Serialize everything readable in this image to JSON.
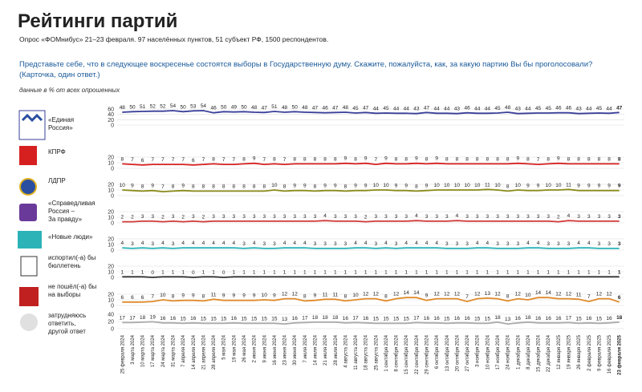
{
  "header": {
    "title": "Рейтинги партий",
    "subtitle": "Опрос «ФОМнибус» 21–23 февраля. 97 населённых пунктов, 51 субъект РФ, 1500 респондентов.",
    "question": [
      "Представьте себе, что в следующее воскресенье состоятся выборы в Государственную думу. Скажите, пожалуйста, как, за какую партию Вы бы проголосовали?",
      "(Карточка, один ответ.)"
    ],
    "note": "данные в % от всех опрошенных"
  },
  "chart_data": [
    {
      "type": "line",
      "label_lines": [
        "«Единая",
        "Россия»"
      ],
      "color": "#3a3f99",
      "ylim": [
        0,
        60
      ],
      "yticks": [
        0,
        20,
        40,
        60
      ],
      "values": [
        48,
        50,
        51,
        52,
        52,
        54,
        50,
        53,
        54,
        46,
        50,
        49,
        50,
        48,
        47,
        51,
        48,
        50,
        48,
        47,
        46,
        47,
        48,
        45,
        47,
        44,
        45,
        44,
        44,
        43,
        47,
        44,
        44,
        43,
        46,
        44,
        44,
        45,
        48,
        43,
        44,
        45,
        45,
        46,
        46,
        43,
        44,
        45,
        44,
        47
      ]
    },
    {
      "type": "line",
      "label_lines": [
        "КПРФ"
      ],
      "color": "#d62020",
      "ylim": [
        0,
        20
      ],
      "yticks": [
        0,
        10,
        20
      ],
      "values": [
        8,
        7,
        6,
        7,
        7,
        7,
        7,
        6,
        7,
        8,
        7,
        7,
        8,
        9,
        7,
        8,
        7,
        8,
        8,
        8,
        8,
        8,
        9,
        8,
        9,
        7,
        9,
        8,
        8,
        9,
        8,
        9,
        8,
        8,
        8,
        8,
        8,
        8,
        8,
        9,
        8,
        7,
        8,
        9,
        8,
        8,
        8,
        8,
        8,
        8
      ]
    },
    {
      "type": "line",
      "label_lines": [
        "ЛДПР"
      ],
      "color": "#8a8a1a",
      "ylim": [
        0,
        20
      ],
      "yticks": [
        0,
        10,
        20
      ],
      "values": [
        10,
        9,
        8,
        9,
        7,
        8,
        9,
        8,
        8,
        8,
        8,
        8,
        8,
        8,
        8,
        10,
        8,
        9,
        9,
        8,
        9,
        9,
        8,
        9,
        9,
        10,
        10,
        9,
        9,
        8,
        9,
        10,
        10,
        10,
        10,
        10,
        11,
        10,
        8,
        10,
        9,
        9,
        10,
        10,
        11,
        9,
        9,
        9,
        9,
        9
      ]
    },
    {
      "type": "line",
      "label_lines": [
        "«Справедливая",
        "Россия –",
        "За правду»"
      ],
      "color": "#d23a3a",
      "ylim": [
        0,
        20
      ],
      "yticks": [
        0,
        10,
        20
      ],
      "values": [
        2,
        2,
        3,
        3,
        2,
        3,
        2,
        3,
        2,
        3,
        3,
        3,
        3,
        3,
        3,
        3,
        3,
        3,
        3,
        3,
        4,
        3,
        3,
        3,
        2,
        3,
        3,
        3,
        3,
        4,
        3,
        3,
        3,
        4,
        3,
        3,
        3,
        3,
        3,
        3,
        3,
        3,
        3,
        2,
        4,
        3,
        3,
        3,
        3,
        3
      ]
    },
    {
      "type": "line",
      "label_lines": [
        "«Новые люди»"
      ],
      "color": "#2bb3b8",
      "ylim": [
        0,
        20
      ],
      "yticks": [
        0,
        10,
        20
      ],
      "values": [
        4,
        3,
        4,
        3,
        4,
        3,
        4,
        4,
        4,
        4,
        4,
        4,
        3,
        4,
        3,
        3,
        4,
        4,
        4,
        3,
        3,
        3,
        3,
        4,
        4,
        3,
        4,
        3,
        4,
        4,
        4,
        4,
        3,
        3,
        3,
        4,
        4,
        3,
        3,
        3,
        4,
        4,
        3,
        3,
        3,
        4,
        4,
        3,
        3,
        3
      ]
    },
    {
      "type": "line",
      "label_lines": [
        "испортил(-а) бы",
        "бюллетень"
      ],
      "color": "#333333",
      "ylim": [
        0,
        20
      ],
      "yticks": [
        0,
        10,
        20
      ],
      "values": [
        1,
        1,
        1,
        0,
        1,
        1,
        1,
        0,
        1,
        1,
        0,
        1,
        1,
        1,
        1,
        1,
        1,
        1,
        1,
        1,
        1,
        1,
        1,
        1,
        1,
        1,
        1,
        1,
        1,
        1,
        1,
        1,
        1,
        1,
        1,
        1,
        1,
        1,
        1,
        1,
        1,
        1,
        1,
        1,
        1,
        1,
        1,
        1,
        1,
        1
      ]
    },
    {
      "type": "line",
      "label_lines": [
        "не пошёл(-а) бы",
        "на выборы"
      ],
      "color": "#e08a2a",
      "ylim": [
        0,
        20
      ],
      "yticks": [
        0,
        10,
        20
      ],
      "values": [
        6,
        6,
        6,
        7,
        10,
        8,
        9,
        9,
        8,
        11,
        9,
        9,
        9,
        9,
        10,
        9,
        12,
        12,
        8,
        9,
        11,
        11,
        8,
        10,
        12,
        12,
        8,
        12,
        14,
        14,
        9,
        12,
        12,
        12,
        7,
        12,
        13,
        12,
        8,
        12,
        10,
        14,
        14,
        12,
        12,
        11,
        7,
        12,
        12,
        6
      ]
    },
    {
      "type": "line",
      "label_lines": [
        "затрудняюсь",
        "ответить,",
        "другой ответ"
      ],
      "color": "#aaaaaa",
      "ylim": [
        0,
        40
      ],
      "yticks": [
        0,
        20,
        40
      ],
      "values": [
        17,
        17,
        18,
        19,
        16,
        16,
        15,
        16,
        15,
        15,
        15,
        16,
        15,
        15,
        15,
        15,
        13,
        16,
        17,
        18,
        18,
        18,
        16,
        17,
        16,
        15,
        15,
        15,
        15,
        17,
        16,
        16,
        15,
        16,
        16,
        15,
        15,
        18,
        13,
        16,
        18,
        16,
        16,
        16,
        17,
        15,
        16,
        15,
        16,
        18
      ],
      "categories": [
        "25 февраля 2024",
        "3 марта 2024",
        "10 марта 2024",
        "17 марта 2024",
        "24 марта 2024",
        "31 марта 2024",
        "7 апреля 2024",
        "14 апреля 2024",
        "21 апреля 2024",
        "28 апреля 2024",
        "5 мая 2024",
        "19 мая 2024",
        "26 мая 2024",
        "2 июня 2024",
        "9 июня 2024",
        "16 июня 2024",
        "23 июня 2024",
        "30 июня 2024",
        "7 июля 2024",
        "14 июля 2024",
        "21 июля 2024",
        "28 июля 2024",
        "4 августа 2024",
        "11 августа 2024",
        "18 августа 2024",
        "25 августа 2024",
        "1 сентября 2024",
        "8 сентября 2024",
        "15 сентября 2024",
        "22 сентября 2024",
        "29 сентября 2024",
        "6 октября 2024",
        "13 октября 2024",
        "20 октября 2024",
        "27 октября 2024",
        "3 ноября 2024",
        "10 ноября 2024",
        "17 ноября 2024",
        "24 ноября 2024",
        "1 декабря 2024",
        "8 декабря 2024",
        "15 декабря 2024",
        "22 декабря 2024",
        "12 января 2025",
        "19 января 2025",
        "26 января 2025",
        "2 февраля 2025",
        "9 февраля 2025",
        "16 февраля 2025",
        "23 февраля 2025"
      ]
    }
  ]
}
